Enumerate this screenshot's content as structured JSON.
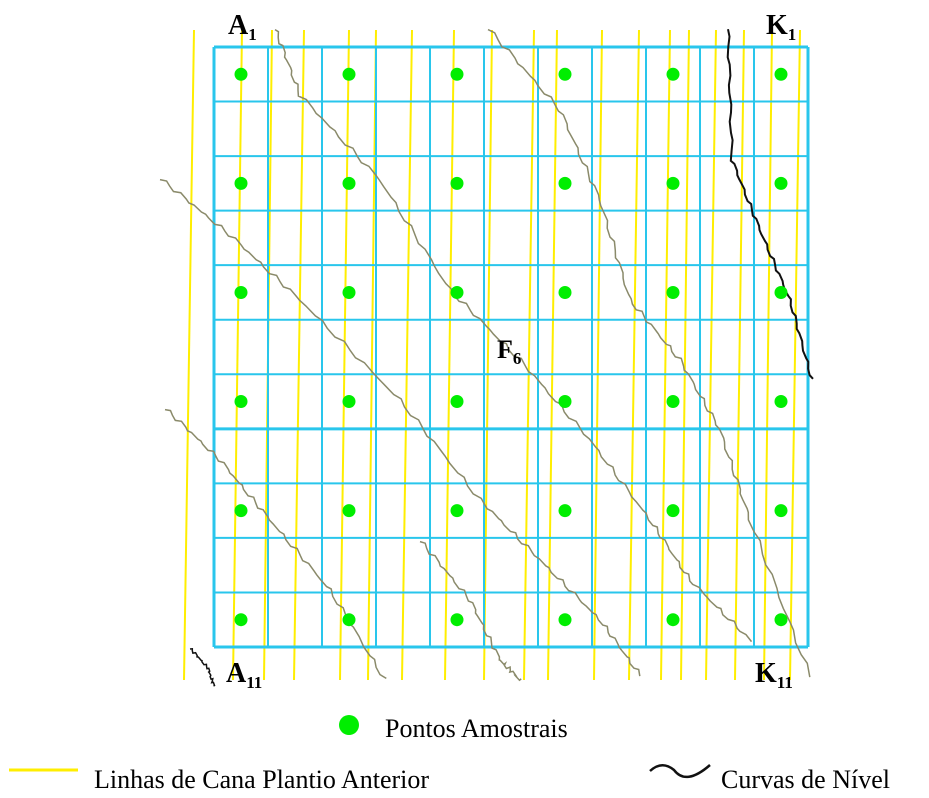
{
  "grid_labels": {
    "a1": {
      "letter": "A",
      "sub": "1"
    },
    "k1": {
      "letter": "K",
      "sub": "1"
    },
    "f6": {
      "letter": "F",
      "sub": "6"
    },
    "a11": {
      "letter": "A",
      "sub": "11"
    },
    "k11": {
      "letter": "K",
      "sub": "11"
    }
  },
  "legend": {
    "points": "Pontos Amostrais",
    "cane_lines": "Linhas de Cana Plantio Anterior",
    "contours": "Curvas de Nível"
  },
  "colors": {
    "grid": "#29c6ec",
    "sample_point": "#00ee00",
    "cane_line": "#ffee00",
    "contour_old": "#8a8a6a",
    "contour_dark": "#111111"
  }
}
